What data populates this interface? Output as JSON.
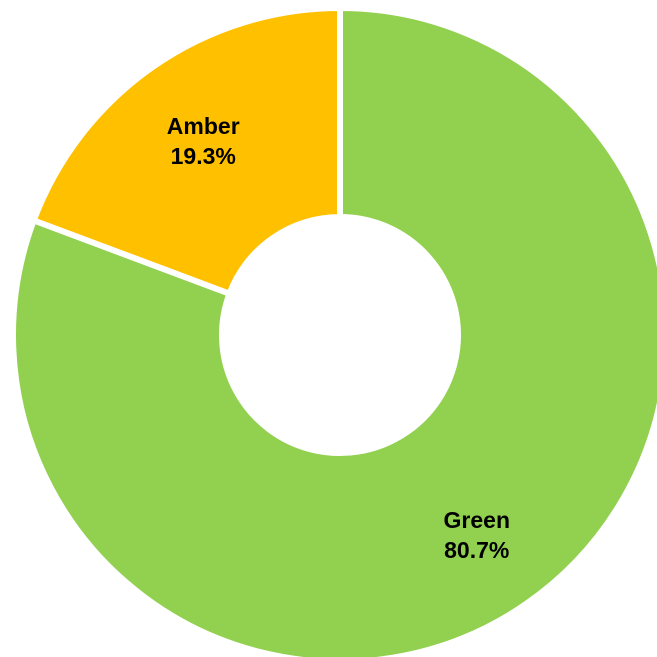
{
  "chart_data": {
    "type": "pie",
    "donut": true,
    "categories": [
      "Green",
      "Amber"
    ],
    "values": [
      80.7,
      19.3
    ],
    "value_labels": [
      "80.7%",
      "19.3%"
    ],
    "colors": [
      "#92D050",
      "#FFC000"
    ],
    "unit": "%",
    "legend": "none",
    "start_angle_deg": 0,
    "direction": "clockwise"
  }
}
